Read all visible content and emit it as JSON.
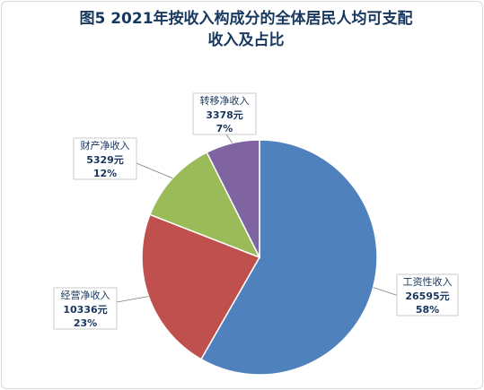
{
  "chart_data": {
    "type": "pie",
    "title_lines": [
      "图5  2021年按收入构成分的全体居民人均可支配",
      "收入及占比"
    ],
    "categories": [
      "工资性收入",
      "经营净收入",
      "财产净收入",
      "转移净收入"
    ],
    "values": [
      26595,
      10336,
      5329,
      3378
    ],
    "value_labels": [
      "26595元",
      "10336元",
      "5329元",
      "3378元"
    ],
    "percent_labels": [
      "58%",
      "23%",
      "12%",
      "7%"
    ],
    "colors": [
      "#4f81bd",
      "#c0504d",
      "#9bbb59",
      "#8064a2"
    ]
  }
}
